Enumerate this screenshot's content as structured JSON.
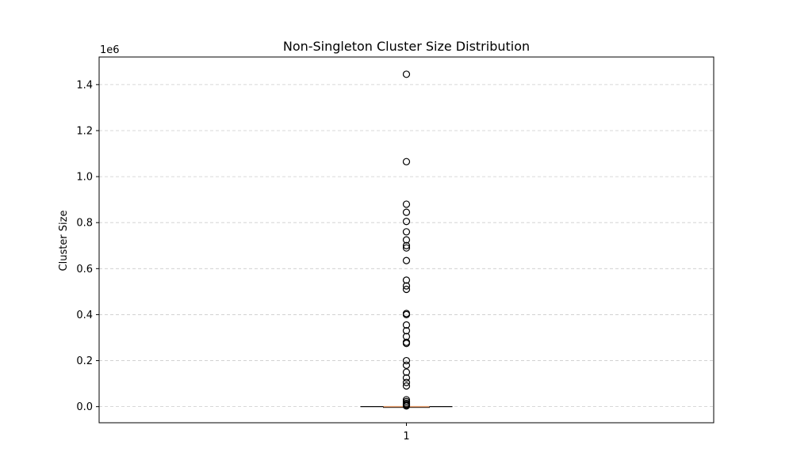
{
  "chart_data": {
    "type": "box",
    "title": "Non-Singleton Cluster Size Distribution",
    "xlabel": "",
    "ylabel": "Cluster Size",
    "y_offset_label": "1e6",
    "ylim": [
      -0.07,
      1.52
    ],
    "y_ticks": [
      "0.0",
      "0.2",
      "0.4",
      "0.6",
      "0.8",
      "1.0",
      "1.2",
      "1.4"
    ],
    "x_ticks": [
      "1"
    ],
    "grid": {
      "axis": "y",
      "style": "dashed"
    },
    "box": {
      "category": "1",
      "q1": 2e-06,
      "median": 4e-06,
      "q3": 1e-05,
      "whisker_low": 2e-06,
      "whisker_high": 2e-05,
      "outliers": [
        1.445,
        1.065,
        0.88,
        0.845,
        0.805,
        0.76,
        0.725,
        0.7,
        0.69,
        0.635,
        0.55,
        0.525,
        0.51,
        0.405,
        0.4,
        0.355,
        0.33,
        0.305,
        0.28,
        0.275,
        0.2,
        0.18,
        0.15,
        0.125,
        0.105,
        0.09,
        0.03,
        0.022,
        0.015,
        0.01,
        0.006,
        0.003
      ]
    },
    "colors": {
      "median": "#e8a070",
      "box": "#000000",
      "outlier": "#000000",
      "grid": "#cccccc"
    }
  }
}
